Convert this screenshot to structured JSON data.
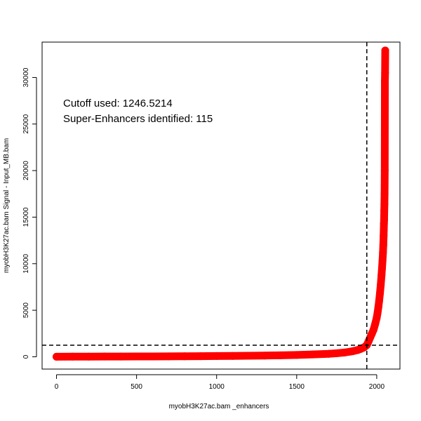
{
  "chart_data": {
    "type": "scatter",
    "xlabel": "myobH3K27ac.bam _enhancers",
    "ylabel": "myobH3K27ac.bam  Signal  -  Input_MB.bam",
    "xlim": [
      -90,
      2145
    ],
    "ylim": [
      -1320,
      33800
    ],
    "x_ticks": [
      0,
      500,
      1000,
      1500,
      2000
    ],
    "x_tick_labels": [
      "0",
      "500",
      "1000",
      "1500",
      "2000"
    ],
    "y_ticks": [
      0,
      5000,
      10000,
      15000,
      20000,
      25000,
      30000
    ],
    "y_tick_labels": [
      "0",
      "5000",
      "10000",
      "15000",
      "20000",
      "25000",
      "30000"
    ],
    "grid": false,
    "legend": "none",
    "annotations": [
      "Cutoff used:  1246.5214",
      "Super-Enhancers identified:  115"
    ],
    "cutoff_y": 1246.5214,
    "cutoff_x": 1938,
    "total_enhancers": 2053,
    "series": [
      {
        "color": "#ff0000",
        "x": [
          0,
          100,
          200,
          300,
          400,
          500,
          600,
          700,
          800,
          900,
          1000,
          1100,
          1200,
          1300,
          1400,
          1500,
          1600,
          1700,
          1750,
          1800,
          1850,
          1880,
          1900,
          1920,
          1938,
          1950,
          1960,
          1970,
          1980,
          1990,
          2000,
          2005,
          2010,
          2015,
          2020,
          2025,
          2030,
          2033,
          2036,
          2039,
          2041,
          2043,
          2044,
          2045,
          2046,
          2047,
          2048,
          2049,
          2050,
          2051,
          2052,
          2053
        ],
        "y": [
          10,
          15,
          20,
          25,
          30,
          35,
          40,
          45,
          55,
          65,
          80,
          95,
          115,
          135,
          160,
          200,
          250,
          320,
          380,
          460,
          600,
          720,
          850,
          1000,
          1250,
          1700,
          2100,
          2500,
          2900,
          3500,
          4200,
          4700,
          5300,
          6000,
          6800,
          7700,
          8800,
          9500,
          10300,
          11200,
          12000,
          13000,
          13600,
          14300,
          14700,
          15700,
          16400,
          17500,
          20000,
          29600,
          30500,
          32900
        ]
      }
    ]
  }
}
